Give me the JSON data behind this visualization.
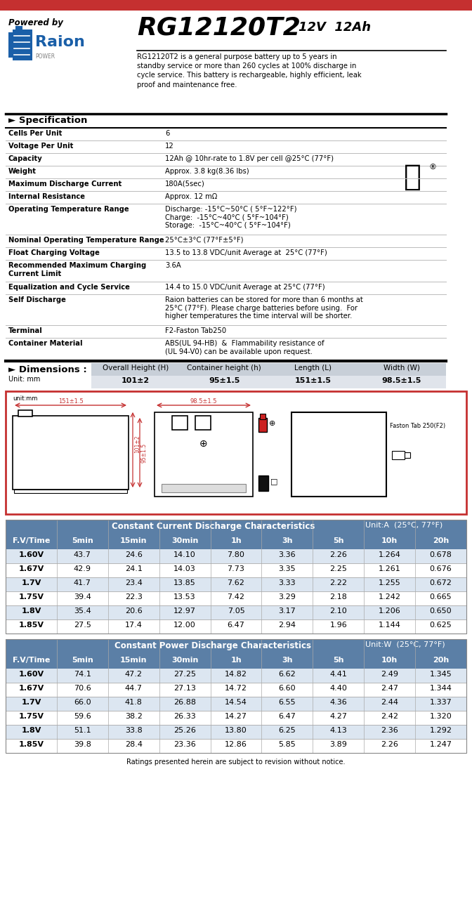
{
  "title_model": "RG12120T2",
  "title_voltage": "12V  12Ah",
  "powered_by": "Powered by",
  "raion_power": "POWER",
  "description": "RG12120T2 is a general purpose battery up to 5 years in\nstandby service or more than 260 cycles at 100% discharge in\ncycle service. This battery is rechargeable, highly efficient, leak\nproof and maintenance free.",
  "spec_title": "► Specification",
  "spec_rows": [
    [
      "Cells Per Unit",
      "6",
      1
    ],
    [
      "Voltage Per Unit",
      "12",
      1
    ],
    [
      "Capacity",
      "12Ah @ 10hr-rate to 1.8V per cell @25°C (77°F)",
      1
    ],
    [
      "Weight",
      "Approx. 3.8 kg(8.36 lbs)",
      1
    ],
    [
      "Maximum Discharge Current",
      "180A(5sec)",
      1
    ],
    [
      "Internal Resistance",
      "Approx. 12 mΩ",
      1
    ],
    [
      "Operating Temperature Range",
      "Discharge: -15°C~50°C ( 5°F~122°F)\nCharge:  -15°C~40°C ( 5°F~104°F)\nStorage:  -15°C~40°C ( 5°F~104°F)",
      3
    ],
    [
      "Nominal Operating Temperature Range",
      "25°C±3°C (77°F±5°F)",
      1
    ],
    [
      "Float Charging Voltage",
      "13.5 to 13.8 VDC/unit Average at  25°C (77°F)",
      1
    ],
    [
      "Recommended Maximum Charging\nCurrent Limit",
      "3.6A",
      2
    ],
    [
      "Equalization and Cycle Service",
      "14.4 to 15.0 VDC/unit Average at 25°C (77°F)",
      1
    ],
    [
      "Self Discharge",
      "Raion batteries can be stored for more than 6 months at\n25°C (77°F). Please charge batteries before using.  For\nhigher temperatures the time interval will be shorter.",
      3
    ],
    [
      "Terminal",
      "F2-Faston Tab250",
      1
    ],
    [
      "Container Material",
      "ABS(UL 94-HB)  &  Flammability resistance of\n(UL 94-V0) can be available upon request.",
      2
    ]
  ],
  "dim_title": "► Dimensions :",
  "dim_unit": "Unit: mm",
  "dim_headers": [
    "Overall Height (H)",
    "Container height (h)",
    "Length (L)",
    "Width (W)"
  ],
  "dim_values": [
    "101±2",
    "95±1.5",
    "151±1.5",
    "98.5±1.5"
  ],
  "cc_title": "Constant Current Discharge Characteristics",
  "cc_unit": "Unit:A  (25°C, 77°F)",
  "cc_headers": [
    "F.V/Time",
    "5min",
    "15min",
    "30min",
    "1h",
    "3h",
    "5h",
    "10h",
    "20h"
  ],
  "cc_data": [
    [
      "1.60V",
      "43.7",
      "24.6",
      "14.10",
      "7.80",
      "3.36",
      "2.26",
      "1.264",
      "0.678"
    ],
    [
      "1.67V",
      "42.9",
      "24.1",
      "14.03",
      "7.73",
      "3.35",
      "2.25",
      "1.261",
      "0.676"
    ],
    [
      "1.7V",
      "41.7",
      "23.4",
      "13.85",
      "7.62",
      "3.33",
      "2.22",
      "1.255",
      "0.672"
    ],
    [
      "1.75V",
      "39.4",
      "22.3",
      "13.53",
      "7.42",
      "3.29",
      "2.18",
      "1.242",
      "0.665"
    ],
    [
      "1.8V",
      "35.4",
      "20.6",
      "12.97",
      "7.05",
      "3.17",
      "2.10",
      "1.206",
      "0.650"
    ],
    [
      "1.85V",
      "27.5",
      "17.4",
      "12.00",
      "6.47",
      "2.94",
      "1.96",
      "1.144",
      "0.625"
    ]
  ],
  "cp_title": "Constant Power Discharge Characteristics",
  "cp_unit": "Unit:W  (25°C, 77°F)",
  "cp_headers": [
    "F.V/Time",
    "5min",
    "15min",
    "30min",
    "1h",
    "3h",
    "5h",
    "10h",
    "20h"
  ],
  "cp_data": [
    [
      "1.60V",
      "74.1",
      "47.2",
      "27.25",
      "14.82",
      "6.62",
      "4.41",
      "2.49",
      "1.345"
    ],
    [
      "1.67V",
      "70.6",
      "44.7",
      "27.13",
      "14.72",
      "6.60",
      "4.40",
      "2.47",
      "1.344"
    ],
    [
      "1.7V",
      "66.0",
      "41.8",
      "26.88",
      "14.54",
      "6.55",
      "4.36",
      "2.44",
      "1.337"
    ],
    [
      "1.75V",
      "59.6",
      "38.2",
      "26.33",
      "14.27",
      "6.47",
      "4.27",
      "2.42",
      "1.320"
    ],
    [
      "1.8V",
      "51.1",
      "33.8",
      "25.26",
      "13.80",
      "6.25",
      "4.13",
      "2.36",
      "1.292"
    ],
    [
      "1.85V",
      "39.8",
      "28.4",
      "23.36",
      "12.86",
      "5.85",
      "3.89",
      "2.26",
      "1.247"
    ]
  ],
  "footer": "Ratings presented herein are subject to revision without notice.",
  "red_color": "#c53030",
  "table_header_bg": "#5b7fa6",
  "table_alt_row": "#dce6f1",
  "dim_header_bg": "#c8cfd8",
  "dim_value_bg": "#e0e4eb"
}
